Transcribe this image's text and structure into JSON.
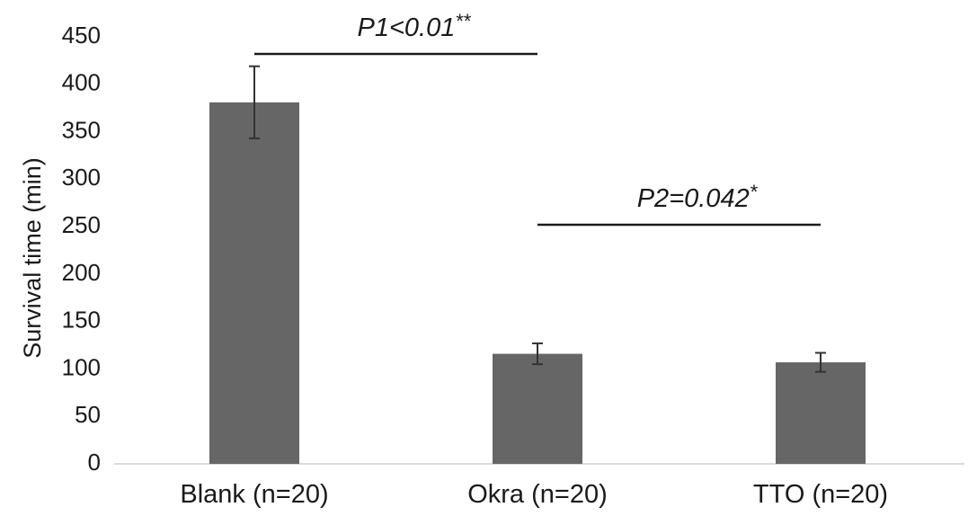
{
  "chart_data": {
    "type": "bar",
    "title": "",
    "xlabel": "",
    "ylabel": "Survival time (min)",
    "ylim": [
      0,
      450
    ],
    "yticks": [
      0,
      50,
      100,
      150,
      200,
      250,
      300,
      350,
      400,
      450
    ],
    "grid": false,
    "legend": "none",
    "categories": [
      "Blank (n=20)",
      "Okra (n=20)",
      "TTO (n=20)"
    ],
    "values": [
      381,
      116,
      107
    ],
    "error": [
      38,
      11,
      10
    ],
    "bar_color": "#666666",
    "annotations": [
      {
        "text": "P1<0.01",
        "stars": "**",
        "from_category": 0,
        "to_category": 1,
        "y": 432
      },
      {
        "text": "P2=0.042",
        "stars": "*",
        "from_category": 1,
        "to_category": 2,
        "y": 252
      }
    ]
  }
}
